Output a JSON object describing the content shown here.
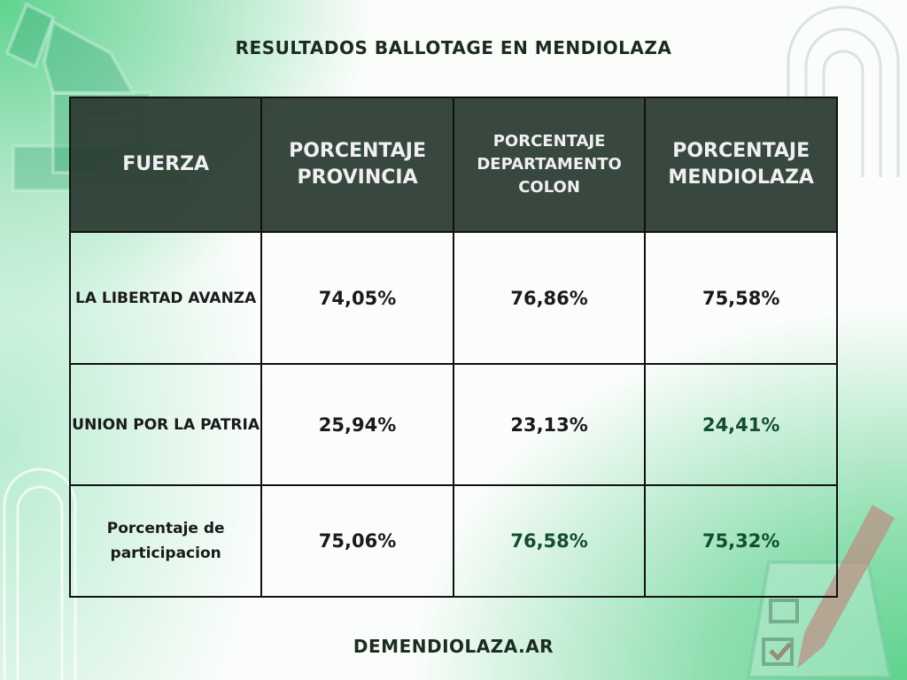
{
  "title": "RESULTADOS BALLOTAGE EN MENDIOLAZA",
  "table": {
    "headers": [
      "FUERZA",
      "PORCENTAJE PROVINCIA",
      "PORCENTAJE DEPARTAMENTO COLON",
      "PORCENTAJE MENDIOLAZA"
    ],
    "rows": [
      {
        "fuerza": "LA LIBERTAD AVANZA",
        "provincia": "74,05%",
        "departamento": "76,86%",
        "mendiolaza": "75,58%"
      },
      {
        "fuerza": "UNION POR LA PATRIA",
        "provincia": "25,94%",
        "departamento": "23,13%",
        "mendiolaza": "24,41%"
      },
      {
        "fuerza": "Porcentaje de participacion",
        "provincia": "75,06%",
        "departamento": "76,58%",
        "mendiolaza": "75,32%"
      }
    ]
  },
  "footer": "DEMENDIOLAZA.AR",
  "icons": [
    "ballot-box-hand-icon",
    "ballot-checklist-pencil-icon"
  ],
  "colors": {
    "header_bg": "#2d3e34",
    "accent_green": "#5fd38f",
    "dark_green_text": "#144d30"
  }
}
